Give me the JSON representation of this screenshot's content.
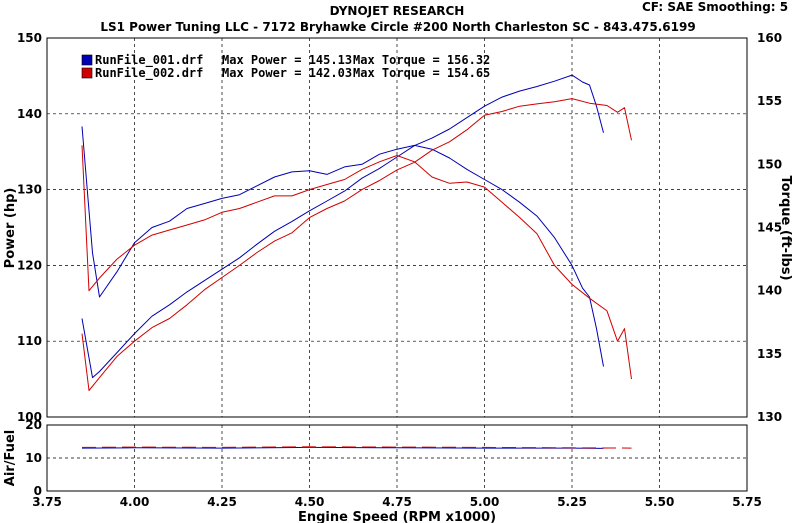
{
  "header": {
    "title": "DYNOJET RESEARCH",
    "subtitle": "LS1 Power Tuning LLC - 7172 Bryhawke Circle #200 North Charleston SC - 843.475.6199",
    "cf_label": "CF: SAE  Smoothing: 5"
  },
  "chart_data": [
    {
      "type": "line",
      "panel": "main",
      "xlabel": "Engine Speed (RPM x1000)",
      "ylabel_left": "Power (hp)",
      "ylabel_right": "Torque (ft-lbs)",
      "xlim": [
        3.75,
        5.75
      ],
      "ylim_left": [
        100,
        150
      ],
      "ylim_right": [
        130,
        160
      ],
      "x_ticks": [
        "3.75",
        "4.00",
        "4.25",
        "4.50",
        "4.75",
        "5.00",
        "5.25",
        "5.50",
        "5.75"
      ],
      "y_ticks_left": [
        "100",
        "110",
        "120",
        "130",
        "140",
        "150"
      ],
      "y_ticks_right": [
        "130",
        "135",
        "140",
        "145",
        "150",
        "155",
        "160"
      ],
      "grid": true,
      "legend": [
        {
          "name": "RunFile_001.drf",
          "max_power_label": "Max Power = 145.13",
          "max_torque_label": "Max Torque = 156.32",
          "color": "#0000b4"
        },
        {
          "name": "RunFile_002.drf",
          "max_power_label": "Max Power = 142.03",
          "max_torque_label": "Max Torque = 154.65",
          "color": "#d00000"
        }
      ],
      "series": [
        {
          "name": "RunFile_001.drf",
          "quantity": "Power",
          "axis": "left",
          "color": "#0000b4",
          "x": [
            3.85,
            3.88,
            3.9,
            3.95,
            4.0,
            4.05,
            4.1,
            4.15,
            4.2,
            4.25,
            4.3,
            4.35,
            4.4,
            4.45,
            4.5,
            4.55,
            4.6,
            4.65,
            4.7,
            4.75,
            4.8,
            4.85,
            4.9,
            4.95,
            5.0,
            5.05,
            5.1,
            5.15,
            5.2,
            5.25,
            5.28,
            5.3,
            5.32,
            5.34
          ],
          "y": [
            113.0,
            105.2,
            106.0,
            108.5,
            111.0,
            113.3,
            114.8,
            116.5,
            118.0,
            119.5,
            121.0,
            122.8,
            124.5,
            125.8,
            127.2,
            128.5,
            129.8,
            131.5,
            132.8,
            134.3,
            135.8,
            136.8,
            138.0,
            139.5,
            141.0,
            142.2,
            143.0,
            143.6,
            144.3,
            145.1,
            144.2,
            143.8,
            141.0,
            137.5
          ]
        },
        {
          "name": "RunFile_001.drf",
          "quantity": "Torque",
          "axis": "right",
          "color": "#0000b4",
          "x": [
            3.85,
            3.88,
            3.9,
            3.95,
            4.0,
            4.05,
            4.1,
            4.15,
            4.2,
            4.25,
            4.3,
            4.35,
            4.4,
            4.45,
            4.5,
            4.55,
            4.6,
            4.65,
            4.7,
            4.75,
            4.8,
            4.85,
            4.9,
            4.95,
            5.0,
            5.05,
            5.1,
            5.15,
            5.2,
            5.25,
            5.28,
            5.3,
            5.32,
            5.34
          ],
          "y": [
            153.0,
            143.0,
            139.5,
            141.5,
            143.8,
            145.0,
            145.5,
            146.5,
            146.9,
            147.3,
            147.6,
            148.3,
            149.0,
            149.4,
            149.5,
            149.2,
            149.8,
            150.0,
            150.8,
            151.2,
            151.5,
            151.2,
            150.5,
            149.6,
            148.8,
            148.0,
            147.0,
            145.9,
            144.2,
            142.0,
            140.2,
            139.5,
            137.0,
            134.0
          ]
        },
        {
          "name": "RunFile_002.drf",
          "quantity": "Power",
          "axis": "left",
          "color": "#d00000",
          "x": [
            3.85,
            3.87,
            3.9,
            3.95,
            4.0,
            4.05,
            4.1,
            4.15,
            4.2,
            4.25,
            4.3,
            4.35,
            4.4,
            4.45,
            4.5,
            4.55,
            4.6,
            4.65,
            4.7,
            4.75,
            4.8,
            4.85,
            4.9,
            4.95,
            5.0,
            5.05,
            5.1,
            5.15,
            5.2,
            5.25,
            5.3,
            5.35,
            5.38,
            5.4,
            5.42
          ],
          "y": [
            111.0,
            103.5,
            105.2,
            108.0,
            110.0,
            111.8,
            113.0,
            114.8,
            116.8,
            118.4,
            120.0,
            121.7,
            123.2,
            124.3,
            126.3,
            127.5,
            128.5,
            130.0,
            131.2,
            132.6,
            133.6,
            135.2,
            136.3,
            137.9,
            139.8,
            140.3,
            141.0,
            141.3,
            141.6,
            142.0,
            141.4,
            141.1,
            140.2,
            140.8,
            136.5
          ]
        },
        {
          "name": "RunFile_002.drf",
          "quantity": "Torque",
          "axis": "right",
          "color": "#d00000",
          "x": [
            3.85,
            3.87,
            3.9,
            3.95,
            4.0,
            4.05,
            4.1,
            4.15,
            4.2,
            4.25,
            4.3,
            4.35,
            4.4,
            4.45,
            4.5,
            4.55,
            4.6,
            4.65,
            4.7,
            4.75,
            4.8,
            4.85,
            4.9,
            4.95,
            5.0,
            5.05,
            5.1,
            5.15,
            5.2,
            5.25,
            5.3,
            5.35,
            5.38,
            5.4,
            5.42
          ],
          "y": [
            151.5,
            140.0,
            141.0,
            142.5,
            143.6,
            144.4,
            144.8,
            145.2,
            145.6,
            146.2,
            146.5,
            147.0,
            147.5,
            147.5,
            148.0,
            148.4,
            148.8,
            149.6,
            150.2,
            150.7,
            150.2,
            149.0,
            148.5,
            148.6,
            148.2,
            147.0,
            145.8,
            144.5,
            142.0,
            140.5,
            139.4,
            138.4,
            136.0,
            137.0,
            133.0
          ]
        }
      ]
    },
    {
      "type": "line",
      "panel": "air_fuel",
      "ylabel": "Air/Fuel",
      "xlim": [
        3.75,
        5.75
      ],
      "ylim": [
        0,
        20
      ],
      "y_ticks": [
        "0",
        "10",
        "20"
      ],
      "grid": true,
      "series": [
        {
          "name": "RunFile_001.drf",
          "color": "#0000b4",
          "x": [
            3.85,
            4.0,
            4.25,
            4.5,
            4.75,
            5.0,
            5.25,
            5.34
          ],
          "y": [
            13.0,
            13.1,
            13.0,
            13.2,
            13.1,
            13.0,
            13.0,
            12.9
          ]
        },
        {
          "name": "RunFile_002.drf",
          "color": "#d00000",
          "x": [
            3.85,
            4.0,
            4.25,
            4.5,
            4.75,
            5.0,
            5.25,
            5.42
          ],
          "y": [
            13.2,
            13.3,
            13.2,
            13.4,
            13.3,
            13.2,
            13.1,
            13.0
          ]
        }
      ]
    }
  ]
}
